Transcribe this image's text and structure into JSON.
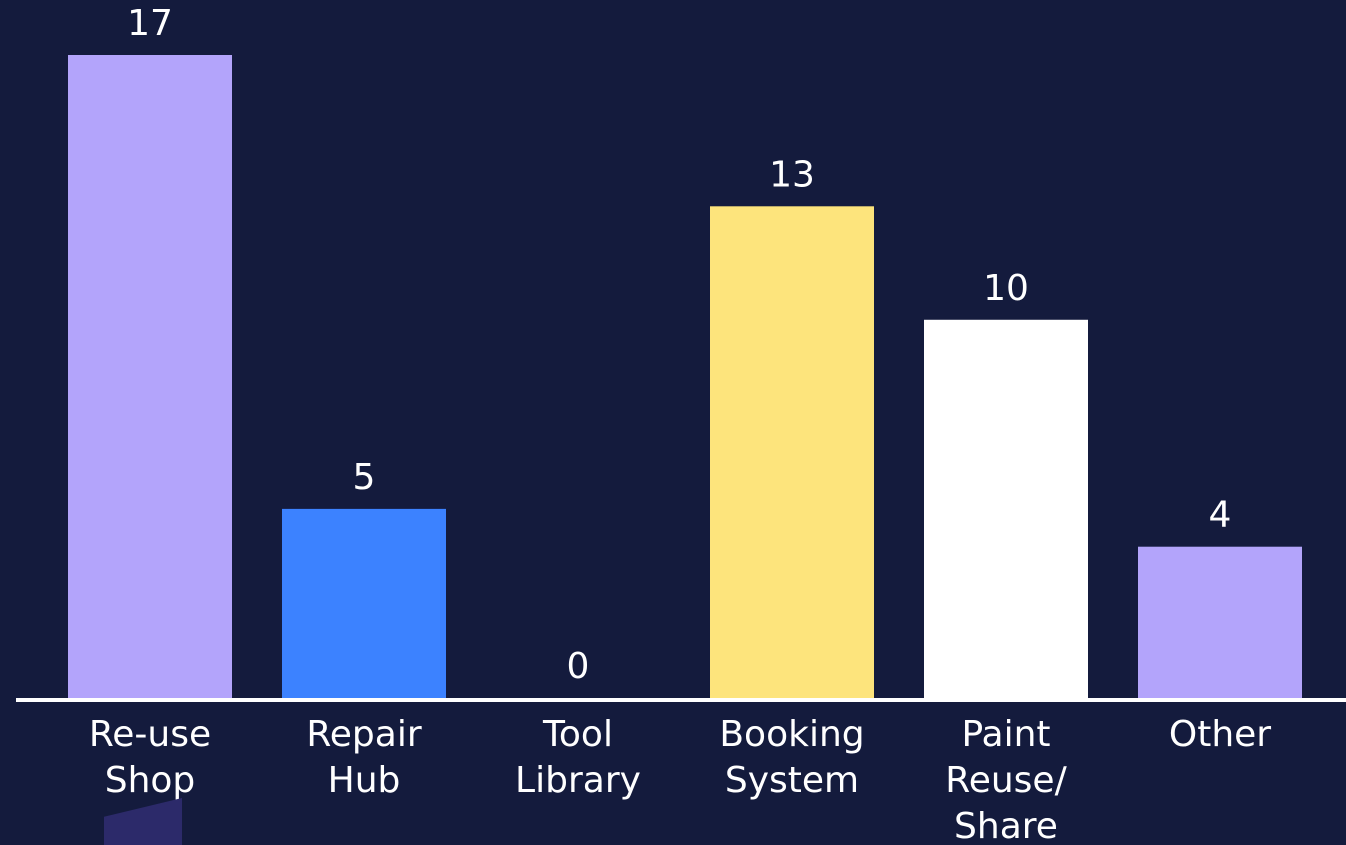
{
  "chart_data": {
    "type": "bar",
    "categories": [
      [
        "Re-use",
        "Shop"
      ],
      [
        "Repair",
        "Hub"
      ],
      [
        "Tool",
        "Library"
      ],
      [
        "Booking",
        "System"
      ],
      [
        "Paint",
        "Reuse/",
        "Share"
      ],
      [
        "Other"
      ]
    ],
    "values": [
      17,
      5,
      0,
      13,
      10,
      4
    ],
    "colors": [
      "#b3a4fb",
      "#3c82ff",
      "#b3a4fb",
      "#fde47c",
      "#ffffff",
      "#b3a4fb"
    ],
    "title": "",
    "xlabel": "",
    "ylabel": "",
    "ylim": [
      0,
      17
    ],
    "grid": false,
    "legend": "none",
    "data_labels": true
  },
  "theme": {
    "background": "#141b3d",
    "axis_color": "#ffffff",
    "text_color": "#ffffff"
  }
}
